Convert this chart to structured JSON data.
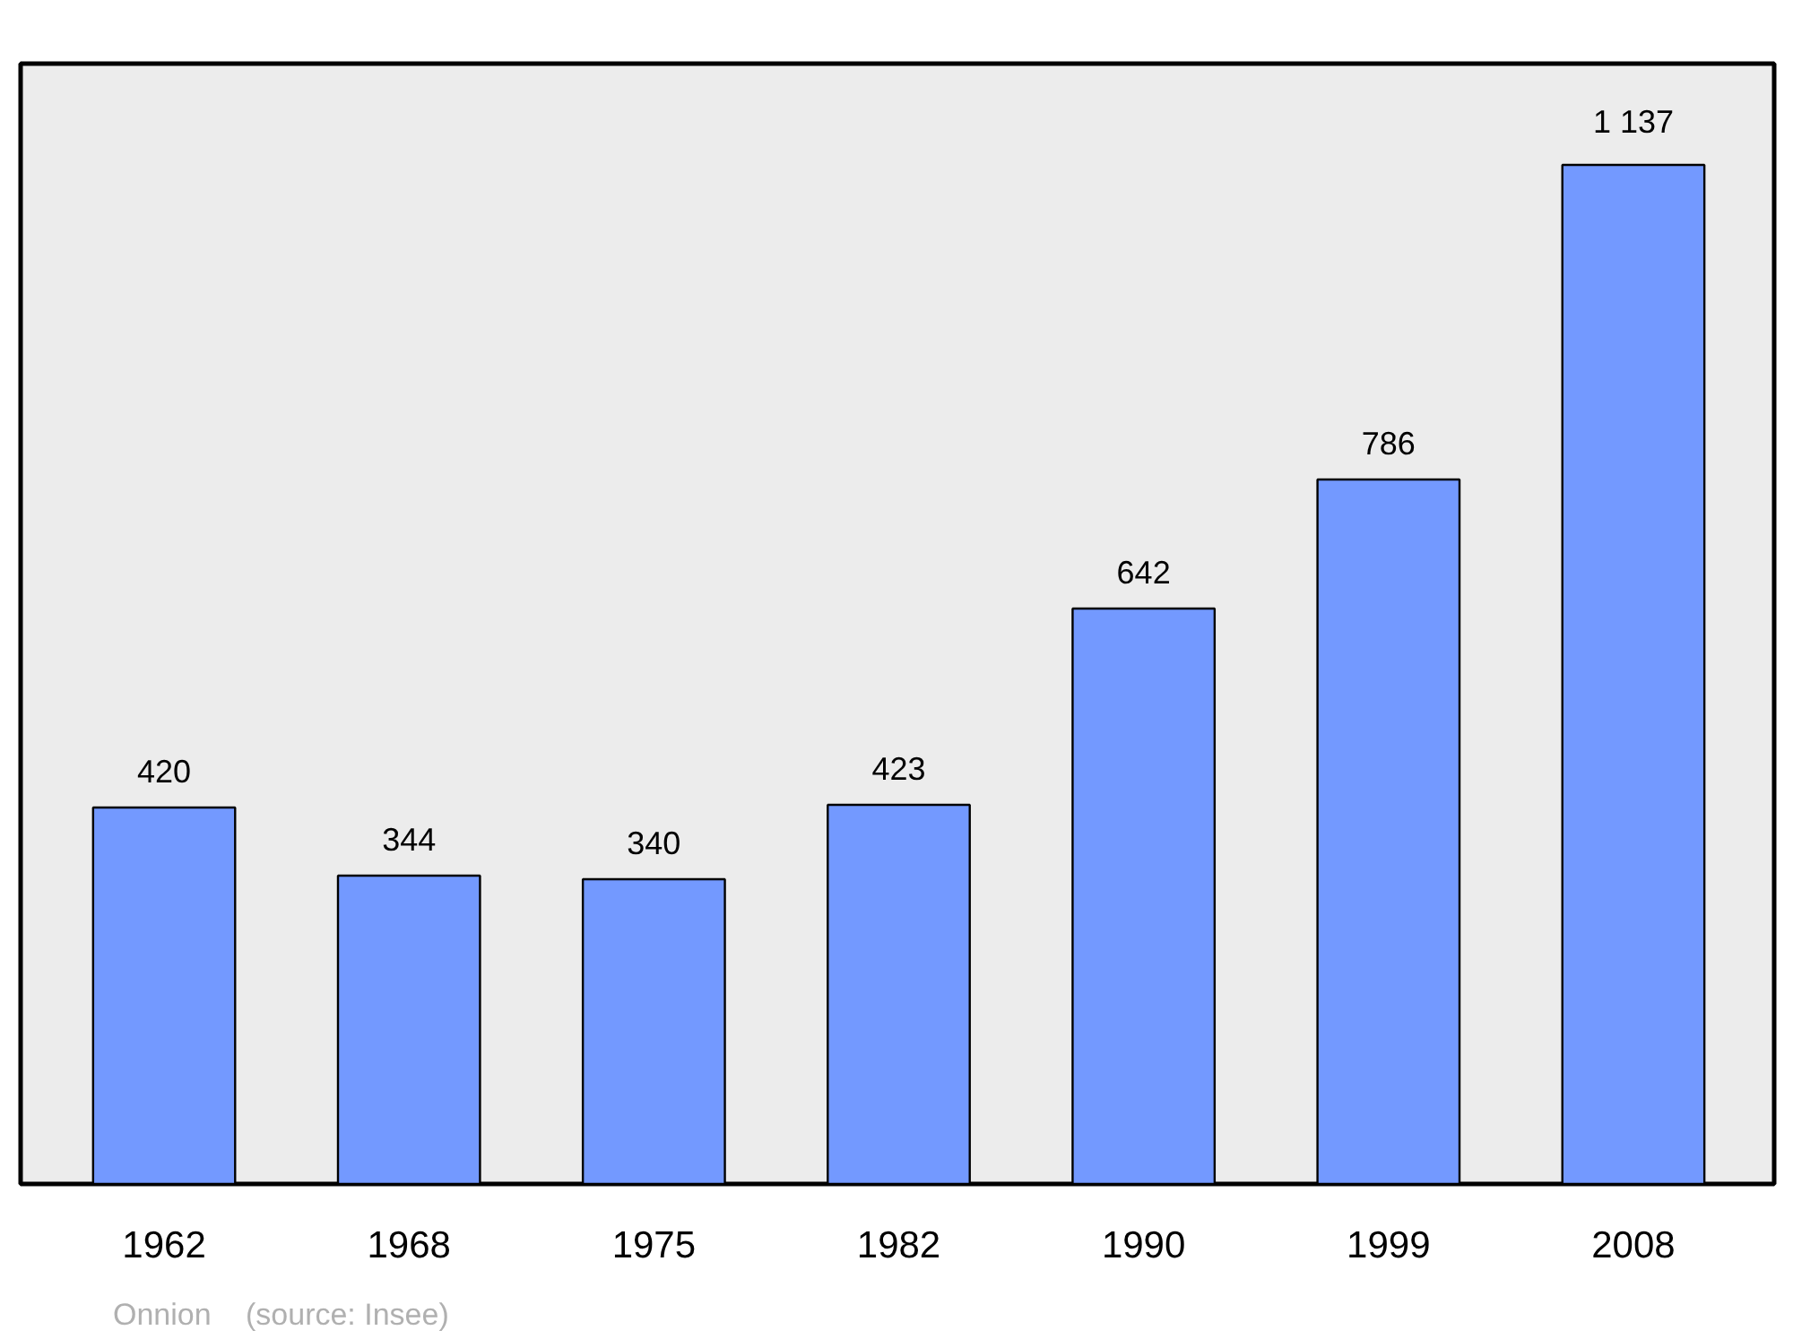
{
  "chart_data": {
    "type": "bar",
    "categories": [
      "1962",
      "1968",
      "1975",
      "1982",
      "1990",
      "1999",
      "2008"
    ],
    "values": [
      420,
      344,
      340,
      423,
      642,
      786,
      1137
    ],
    "value_labels": [
      "420",
      "344",
      "340",
      "423",
      "642",
      "786",
      "1 137"
    ],
    "color": "#7399ff",
    "ylim": [
      0,
      1250
    ],
    "tick_labels": "x",
    "grid": false,
    "annotations": [
      "Onnion",
      "(source: Insee)"
    ]
  }
}
